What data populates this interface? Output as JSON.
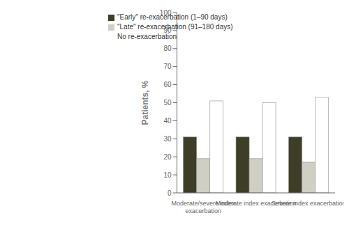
{
  "chart_data": {
    "type": "bar",
    "categories": [
      "Moderate/severe index\nexacerbation",
      "Moderate index exacerbation",
      "Severe index exacerbation"
    ],
    "series": [
      {
        "name": "\"Early\" re-exacerbation (1–90 days)",
        "color": "#3d3d28",
        "values": [
          31,
          31,
          31
        ]
      },
      {
        "name": "\"Late\" re-exacerbation (91–180 days)",
        "color": "#d0cfc4",
        "values": [
          19,
          19,
          17
        ]
      },
      {
        "name": "No re-exacerbation",
        "color": "#ffffff",
        "values": [
          51,
          50,
          53
        ]
      }
    ],
    "ylabel": "Patients, %",
    "ylim": [
      0,
      100
    ],
    "yticks": [
      0,
      10,
      20,
      30,
      40,
      50,
      60,
      70,
      80,
      90,
      100
    ],
    "grid": false,
    "legend": "upper left"
  }
}
